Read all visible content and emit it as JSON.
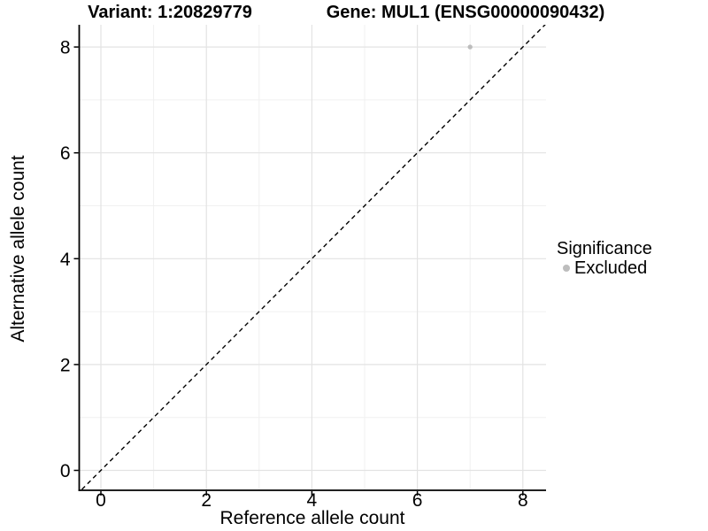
{
  "chart_data": {
    "type": "scatter",
    "title_variant": "Variant: 1:20829779",
    "title_gene": "Gene: MUL1 (ENSG00000090432)",
    "xlabel": "Reference allele count",
    "ylabel": "Alternative allele count",
    "x_ticks": [
      0,
      2,
      4,
      6,
      8
    ],
    "y_ticks": [
      0,
      2,
      4,
      6,
      8
    ],
    "x_minor": [
      1,
      3,
      5,
      7
    ],
    "y_minor": [
      1,
      3,
      5,
      7
    ],
    "xlim": [
      -0.41,
      8.44
    ],
    "ylim": [
      -0.38,
      8.42
    ],
    "grid": "major and minor gridlines, white panel background",
    "identity_line": {
      "style": "dashed",
      "slope": 1,
      "intercept": 0,
      "color": "#000000"
    },
    "series": [
      {
        "name": "Excluded",
        "color": "#bdbdbd",
        "points": [
          [
            7,
            8
          ]
        ]
      }
    ],
    "legend": {
      "title": "Significance",
      "position": "right",
      "entries": [
        {
          "label": "Excluded",
          "color": "#bdbdbd",
          "marker": "circle"
        }
      ]
    }
  },
  "colors": {
    "background": "#ffffff",
    "axis_line": "#000000",
    "grid_major": "#e3e3e3",
    "grid_minor": "#f0f0f0",
    "text": "#000000",
    "point": "#bdbdbd"
  }
}
